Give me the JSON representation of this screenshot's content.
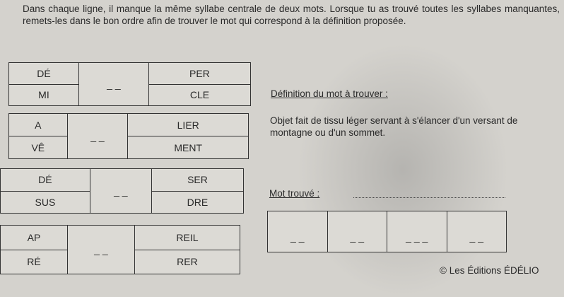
{
  "instructions": "Dans chaque ligne, il manque la même syllabe centrale de deux mots. Lorsque tu as trouvé toutes les syllabes manquantes, remets-les dans le bon ordre afin de trouver le mot qui correspond à la définition proposée.",
  "grids": [
    {
      "rows": [
        {
          "start": "DÉ",
          "blank": "",
          "end": "PER"
        },
        {
          "start": "MI",
          "blank": "_ _",
          "end": "CLE"
        }
      ]
    },
    {
      "rows": [
        {
          "start": "A",
          "blank": "",
          "end": "LIER"
        },
        {
          "start": "VÊ",
          "blank": "_ _",
          "end": "MENT"
        }
      ]
    },
    {
      "rows": [
        {
          "start": "DÉ",
          "blank": "",
          "end": "SER"
        },
        {
          "start": "SUS",
          "blank": "_ _",
          "end": "DRE"
        }
      ]
    },
    {
      "rows": [
        {
          "start": "AP",
          "blank": "",
          "end": "REIL"
        },
        {
          "start": "RÉ",
          "blank": "_ _",
          "end": "RER"
        }
      ]
    }
  ],
  "definition": {
    "title": "Définition du mot à trouver :",
    "text": "Objet fait de tissu léger servant à s'élancer d'un versant de montagne ou d'un sommet."
  },
  "found": {
    "label": "Mot trouvé :",
    "value": ""
  },
  "answer_cells": [
    "_ _",
    "_ _",
    "_ _ _",
    "_ _"
  ],
  "copyright": "© Les Éditions ÉDÉLIO"
}
